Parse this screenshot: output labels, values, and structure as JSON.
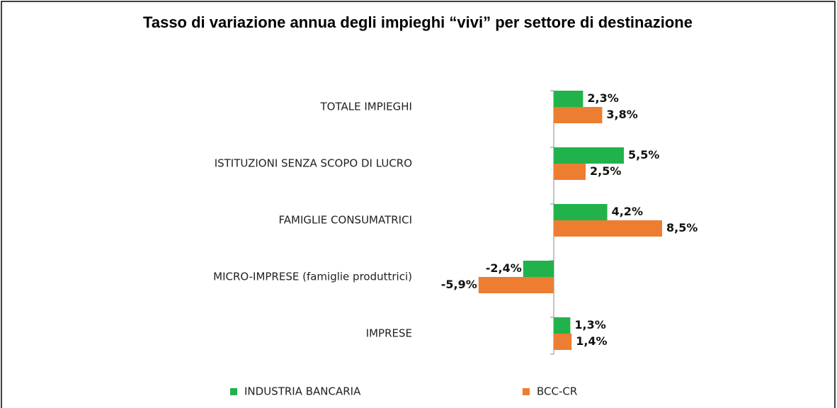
{
  "chart_data": {
    "type": "barh",
    "title": "Tasso di variazione annua degli impieghi “vivi” per settore di destinazione",
    "categories": [
      "TOTALE IMPIEGHI",
      "ISTITUZIONI SENZA SCOPO DI LUCRO",
      "FAMIGLIE CONSUMATRICI",
      "MICRO-IMPRESE (famiglie produttrici)",
      "IMPRESE"
    ],
    "series": [
      {
        "name": "INDUSTRIA BANCARIA",
        "color": "#21b24b",
        "values": [
          2.3,
          5.5,
          4.2,
          -2.4,
          1.3
        ],
        "value_labels": [
          "2,3%",
          "5,5%",
          "4,2%",
          "-2,4%",
          "1,3%"
        ]
      },
      {
        "name": "BCC-CR",
        "color": "#ed7d31",
        "values": [
          3.8,
          2.5,
          8.5,
          -5.9,
          1.4
        ],
        "value_labels": [
          "3,8%",
          "2,5%",
          "8,5%",
          "-5,9%",
          "1,4%"
        ]
      }
    ],
    "xlim": [
      -9,
      20
    ],
    "legend": "bottom"
  }
}
